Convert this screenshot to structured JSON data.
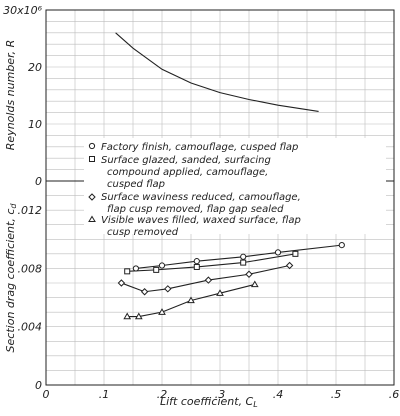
{
  "chart_data": [
    {
      "type": "line",
      "title": "",
      "xlabel": "",
      "ylabel": "Reynolds number, R",
      "y_multiplier_label": "30x10⁶",
      "xlim": [
        0,
        0.6
      ],
      "ylim": [
        0,
        30
      ],
      "y_ticks": [
        0,
        10,
        20,
        30
      ],
      "y_tick_labels": [
        "0",
        "10",
        "20",
        "30x10⁶"
      ],
      "grid": true,
      "series": [
        {
          "x": [
            0.12,
            0.15,
            0.2,
            0.25,
            0.3,
            0.35,
            0.4,
            0.47
          ],
          "y": [
            26.0,
            23.3,
            19.6,
            17.2,
            15.5,
            14.3,
            13.3,
            12.2
          ]
        }
      ]
    },
    {
      "type": "line",
      "title": "",
      "xlabel": "Lift coefficient, C_L",
      "ylabel": "Section drag coefficient, c_d",
      "xlim": [
        0,
        0.6
      ],
      "ylim": [
        0,
        0.014
      ],
      "x_ticks": [
        0,
        0.1,
        0.2,
        0.3,
        0.4,
        0.5,
        0.6
      ],
      "x_tick_labels": [
        "0",
        ".1",
        ".2",
        ".3",
        ".4",
        ".5",
        ".6"
      ],
      "y_ticks": [
        0,
        0.004,
        0.008,
        0.012
      ],
      "y_tick_labels": [
        "0",
        ".004",
        ".008",
        ".012"
      ],
      "grid": true,
      "legend_placement": "top-right",
      "series": [
        {
          "name": "Factory finish, camouflage, cusped flap",
          "marker": "circle",
          "x": [
            0.155,
            0.2,
            0.26,
            0.34,
            0.4,
            0.51
          ],
          "y": [
            0.008,
            0.0082,
            0.0085,
            0.0088,
            0.0091,
            0.0096
          ]
        },
        {
          "name": "Surface glazed, sanded, surfacing compound applied, camouflage, cusped flap",
          "marker": "square",
          "x": [
            0.14,
            0.19,
            0.26,
            0.34,
            0.43
          ],
          "y": [
            0.0078,
            0.0079,
            0.0081,
            0.0084,
            0.009
          ]
        },
        {
          "name": "Surface waviness reduced, camouflage, flap cusp removed, flap gap sealed",
          "marker": "diamond",
          "x": [
            0.13,
            0.17,
            0.21,
            0.28,
            0.35,
            0.42
          ],
          "y": [
            0.007,
            0.0064,
            0.0066,
            0.0072,
            0.0076,
            0.0082
          ]
        },
        {
          "name": "Visible waves filled, waxed surface, flap cusp removed",
          "marker": "triangle",
          "x": [
            0.14,
            0.16,
            0.2,
            0.25,
            0.3,
            0.36
          ],
          "y": [
            0.0047,
            0.0047,
            0.005,
            0.0058,
            0.0063,
            0.0069
          ]
        }
      ]
    }
  ],
  "legend": {
    "line1": "Factory finish, camouflage, cusped flap",
    "line2a": "Surface glazed, sanded, surfacing",
    "line2b": "compound applied, camouflage,",
    "line2c": "cusped flap",
    "line3a": "Surface waviness reduced, camouflage,",
    "line3b": "flap cusp removed, flap gap sealed",
    "line4a": "Visible waves filled, waxed surface, flap",
    "line4b": "cusp removed"
  },
  "labels": {
    "x_axis": "Lift coefficient, C",
    "x_axis_sub": "L",
    "y_top": "Reynolds number, R",
    "y_bottom": "Section drag coefficient, c",
    "y_bottom_sub": "d"
  }
}
